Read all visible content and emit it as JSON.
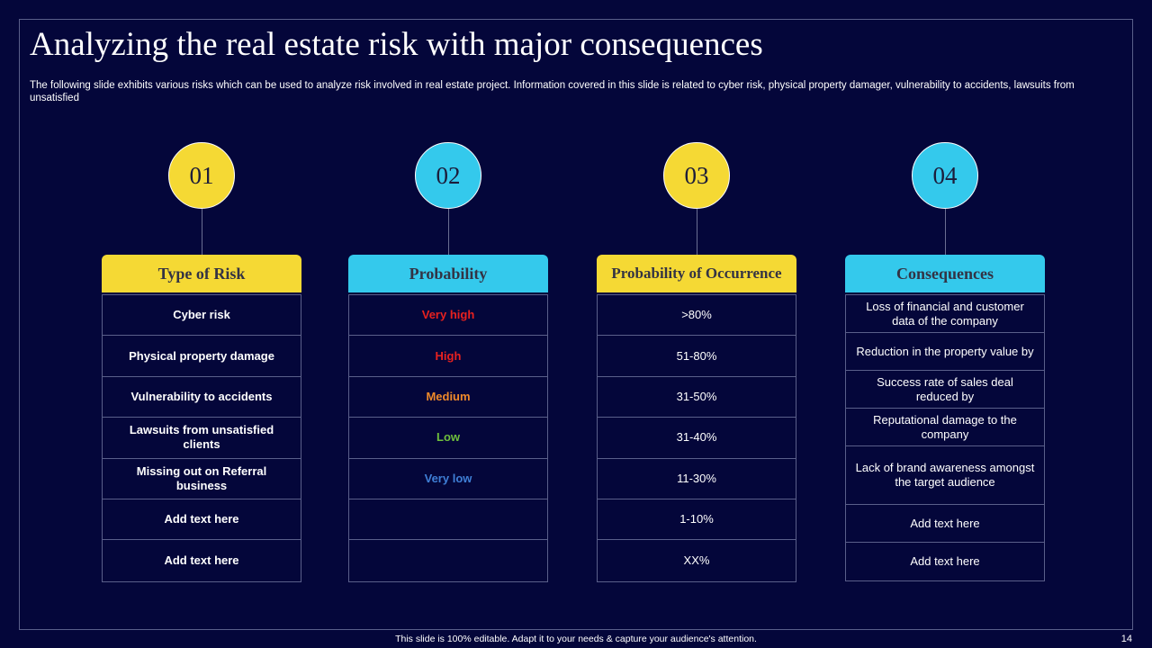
{
  "title": "Analyzing the real estate risk with major consequences",
  "subtitle": "The following slide exhibits various risks which can be used to analyze risk involved in real estate project. Information covered in this slide is related to cyber risk, physical property damager, vulnerability to accidents, lawsuits from unsatisfied",
  "columns": [
    {
      "number": "01",
      "header": "Type of Risk",
      "rows": [
        "Cyber risk",
        "Physical property damage",
        "Vulnerability to accidents",
        "Lawsuits from unsatisfied clients",
        "Missing out on Referral business",
        "Add text here",
        "Add text here"
      ]
    },
    {
      "number": "02",
      "header": "Probability",
      "rows": [
        "Very high",
        "High",
        "Medium",
        "Low",
        "Very low",
        "",
        ""
      ]
    },
    {
      "number": "03",
      "header": "Probability of Occurrence",
      "rows": [
        ">80%",
        "51-80%",
        "31-50%",
        "31-40%",
        "11-30%",
        "1-10%",
        "XX%"
      ]
    },
    {
      "number": "04",
      "header": "Consequences",
      "rows": [
        "Loss of financial and customer data of the company",
        "Reduction in the property value by",
        "Success rate of sales deal reduced by",
        "Reputational damage to the company",
        "Lack of brand awareness amongst the target audience",
        "Add text here",
        "Add text here"
      ]
    }
  ],
  "colors": {
    "background": "#04063a",
    "yellow": "#f5d934",
    "cyan": "#34c9ec",
    "very_high": "#e8211f",
    "high": "#e8211f",
    "medium": "#ef8a2a",
    "low": "#6fbf3c",
    "very_low": "#3f7fd6"
  },
  "footer": "This slide is 100% editable. Adapt it to your needs & capture your audience's attention.",
  "page_number": "14"
}
